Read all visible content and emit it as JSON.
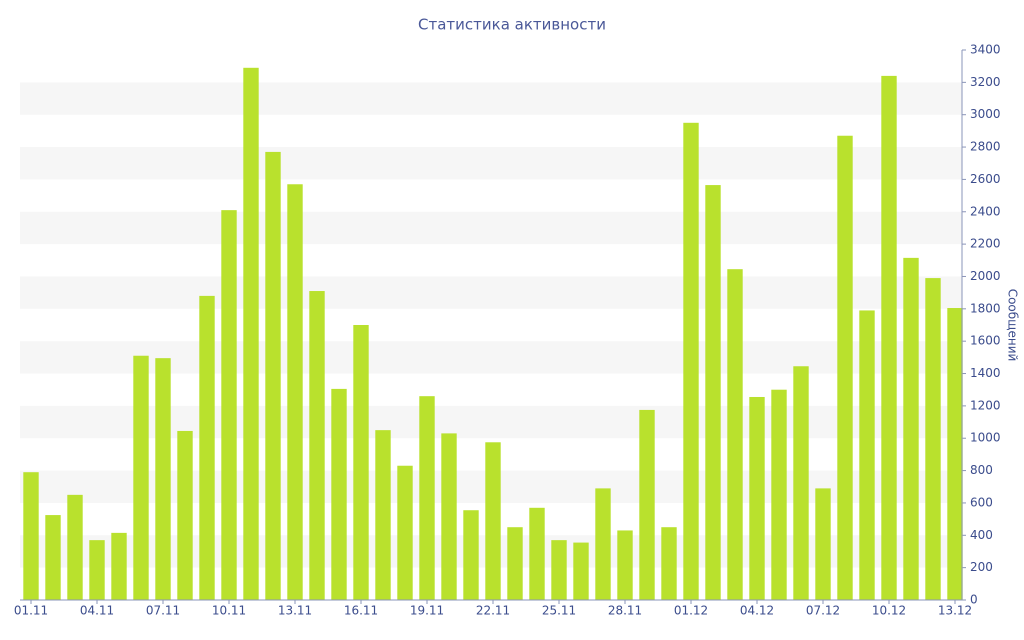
{
  "chart_data": {
    "type": "bar",
    "title": "Статистика активности",
    "y_label": "Сообщений",
    "categories": [
      "01.11",
      null,
      null,
      "04.11",
      null,
      null,
      "07.11",
      null,
      null,
      "10.11",
      null,
      null,
      "13.11",
      null,
      null,
      "16.11",
      null,
      null,
      "19.11",
      null,
      null,
      "22.11",
      null,
      null,
      "25.11",
      null,
      null,
      "28.11",
      null,
      null,
      "01.12",
      null,
      null,
      "04.12",
      null,
      null,
      "07.12",
      null,
      null,
      "10.12",
      null,
      null,
      "13.12"
    ],
    "values": [
      790,
      525,
      650,
      370,
      415,
      1510,
      1495,
      1045,
      1880,
      2410,
      3290,
      2770,
      2570,
      1910,
      1305,
      1700,
      1050,
      830,
      1260,
      1030,
      555,
      975,
      450,
      570,
      370,
      355,
      690,
      430,
      1175,
      450,
      2950,
      2565,
      2045,
      1255,
      1300,
      1445,
      690,
      2870,
      1790,
      3240,
      2115,
      1990,
      1805
    ],
    "color": "#b9e12d",
    "ylim": [
      0,
      3400
    ],
    "yticks": [
      0,
      200,
      400,
      600,
      800,
      1000,
      1200,
      1400,
      1600,
      1800,
      2000,
      2200,
      2400,
      2600,
      2800,
      3000,
      3200,
      3400
    ],
    "y_axis_side": "right",
    "grid": true
  }
}
